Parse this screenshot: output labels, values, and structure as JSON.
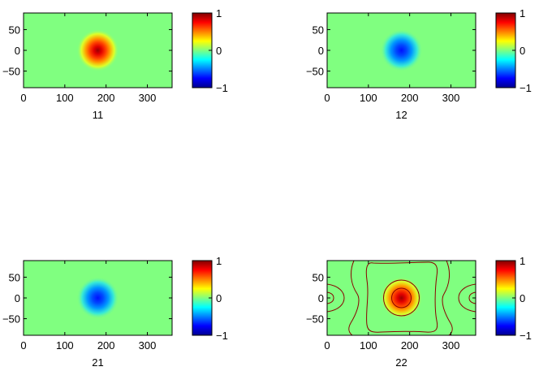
{
  "chart_data": [
    {
      "type": "heatmap",
      "subplot": "11",
      "xlabel": "11",
      "xlim": [
        0,
        360
      ],
      "ylim": [
        -90,
        90
      ],
      "xticks": [
        "0",
        "100",
        "200",
        "300"
      ],
      "yticks": [
        "50",
        "0",
        "-50"
      ],
      "field": {
        "background": 0.0,
        "center_x": 180,
        "center_y": 0,
        "amplitude": 1.0,
        "radius": 26
      },
      "colorbar": {
        "clim": [
          -1,
          1
        ],
        "ticks": [
          "1",
          "0",
          "-1"
        ]
      },
      "contours": false
    },
    {
      "type": "heatmap",
      "subplot": "12",
      "xlabel": "12",
      "xlim": [
        0,
        360
      ],
      "ylim": [
        -90,
        90
      ],
      "xticks": [
        "0",
        "100",
        "200",
        "300"
      ],
      "yticks": [
        "50",
        "0",
        "-50"
      ],
      "field": {
        "background": 0.0,
        "center_x": 180,
        "center_y": 0,
        "amplitude": -1.0,
        "radius": 26
      },
      "colorbar": {
        "clim": [
          -1,
          1
        ],
        "ticks": [
          "1",
          "0",
          "-1"
        ]
      },
      "contours": false
    },
    {
      "type": "heatmap",
      "subplot": "21",
      "xlabel": "21",
      "xlim": [
        0,
        360
      ],
      "ylim": [
        -90,
        90
      ],
      "xticks": [
        "0",
        "100",
        "200",
        "300"
      ],
      "yticks": [
        "50",
        "0",
        "-50"
      ],
      "field": {
        "background": 0.0,
        "center_x": 180,
        "center_y": 0,
        "amplitude": -1.0,
        "radius": 26
      },
      "colorbar": {
        "clim": [
          -1,
          1
        ],
        "ticks": [
          "1",
          "0",
          "-1"
        ]
      },
      "contours": false
    },
    {
      "type": "heatmap",
      "subplot": "22",
      "xlabel": "22",
      "xlim": [
        0,
        360
      ],
      "ylim": [
        -90,
        90
      ],
      "xticks": [
        "0",
        "100",
        "200",
        "300"
      ],
      "yticks": [
        "50",
        "0",
        "-50"
      ],
      "field": {
        "background": 0.0,
        "center_x": 180,
        "center_y": 0,
        "amplitude": 1.0,
        "radius": 26
      },
      "colorbar": {
        "clim": [
          -1,
          1
        ],
        "ticks": [
          "1",
          "0",
          "-1"
        ]
      },
      "contours": true,
      "contour_color": "#8b0000"
    }
  ]
}
